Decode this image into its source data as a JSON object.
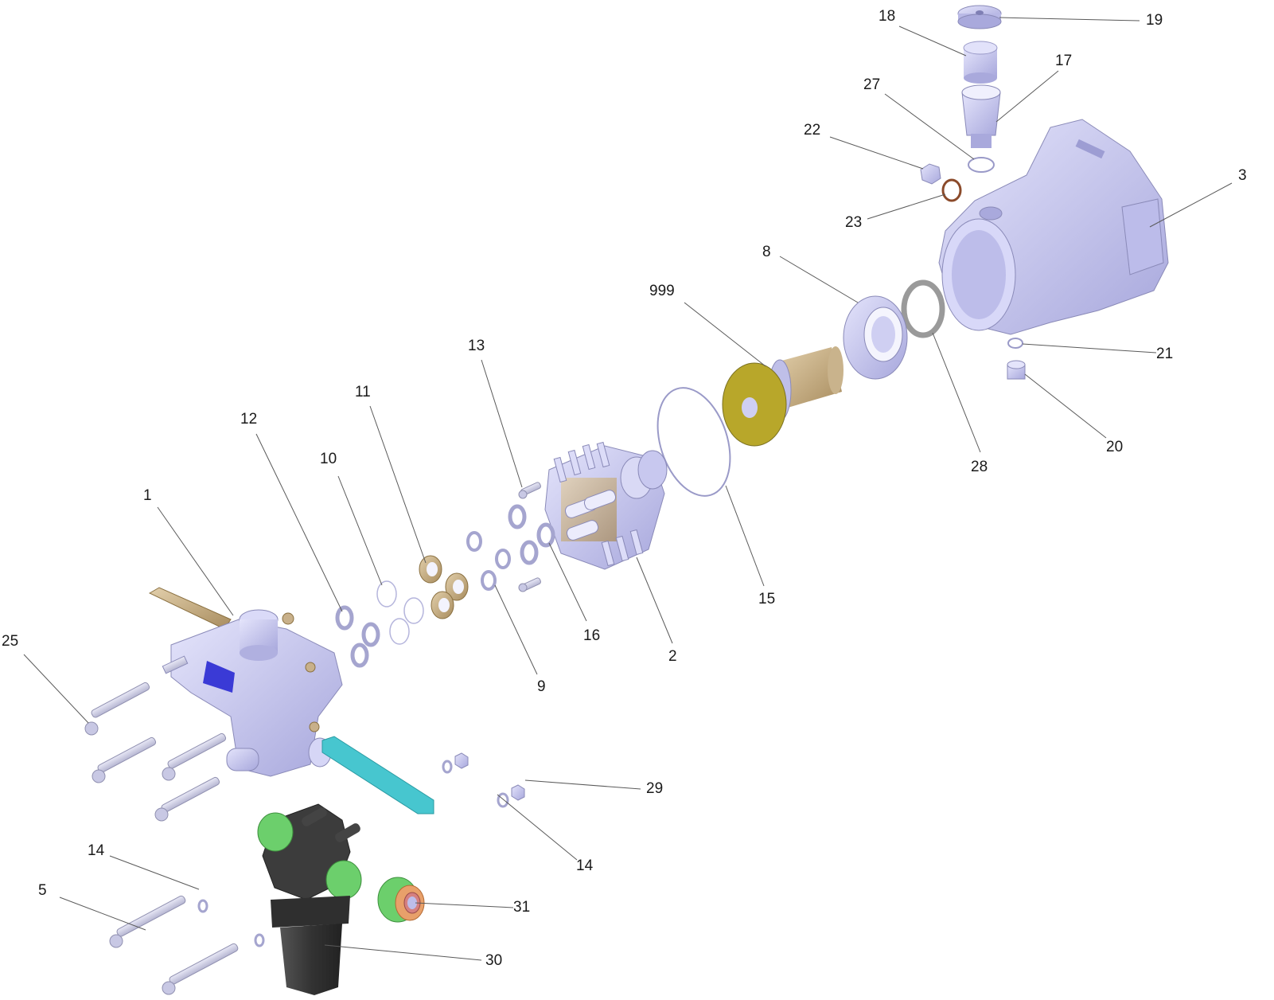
{
  "diagram": {
    "callouts": [
      {
        "id": "c1",
        "label": "1"
      },
      {
        "id": "c2",
        "label": "2"
      },
      {
        "id": "c3",
        "label": "3"
      },
      {
        "id": "c5",
        "label": "5"
      },
      {
        "id": "c8",
        "label": "8"
      },
      {
        "id": "c9",
        "label": "9"
      },
      {
        "id": "c10",
        "label": "10"
      },
      {
        "id": "c11",
        "label": "11"
      },
      {
        "id": "c12",
        "label": "12"
      },
      {
        "id": "c13",
        "label": "13"
      },
      {
        "id": "c14a",
        "label": "14"
      },
      {
        "id": "c14b",
        "label": "14"
      },
      {
        "id": "c15",
        "label": "15"
      },
      {
        "id": "c16",
        "label": "16"
      },
      {
        "id": "c17",
        "label": "17"
      },
      {
        "id": "c18",
        "label": "18"
      },
      {
        "id": "c19",
        "label": "19"
      },
      {
        "id": "c20",
        "label": "20"
      },
      {
        "id": "c21",
        "label": "21"
      },
      {
        "id": "c22",
        "label": "22"
      },
      {
        "id": "c23",
        "label": "23"
      },
      {
        "id": "c25",
        "label": "25"
      },
      {
        "id": "c27",
        "label": "27"
      },
      {
        "id": "c28",
        "label": "28"
      },
      {
        "id": "c29",
        "label": "29"
      },
      {
        "id": "c30",
        "label": "30"
      },
      {
        "id": "c31",
        "label": "31"
      },
      {
        "id": "c999",
        "label": "999"
      }
    ],
    "colors": {
      "housing": "#c9c9f2",
      "housing_shade": "#a9a9dc",
      "bronze": "#c8b08a",
      "seal_ring": "#b7b7e4",
      "olive": "#b8a72a",
      "cyan_bracket": "#47c6cf",
      "blue_spring": "#3a3ad6",
      "black_filter": "#3a3a3a",
      "green_fitting": "#6ccf6c",
      "brown_ring": "#8b4a2a",
      "orange_coupling": "#e8a06a",
      "line": "#5a5a5a"
    }
  }
}
